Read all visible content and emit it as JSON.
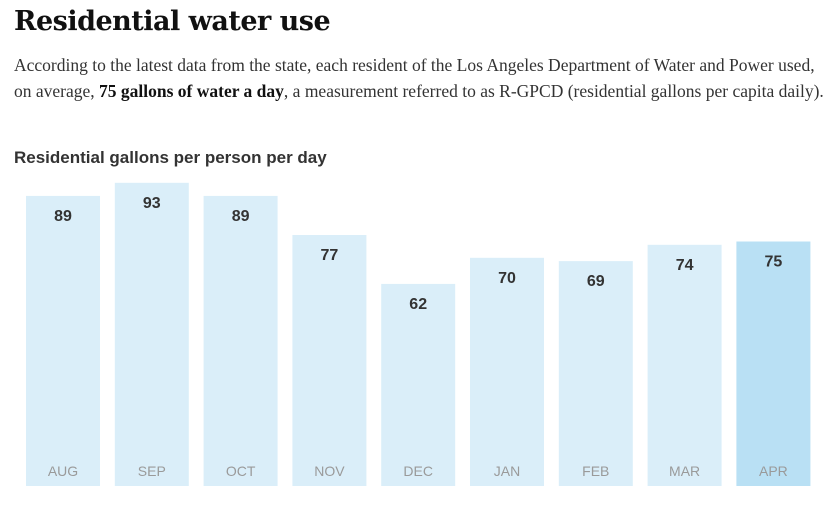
{
  "header": {
    "title": "Residential water use",
    "description_before": "According to the latest data from the state, each resident of the Los Angeles Department of Water and Power used, on average, ",
    "description_bold": "75 gallons of water a day",
    "description_after": ", a measurement referred to as R-GPCD (residential gallons per capita daily)."
  },
  "chart_data": {
    "type": "bar",
    "title": "Residential gallons per person per day",
    "categories": [
      "AUG",
      "SEP",
      "OCT",
      "NOV",
      "DEC",
      "JAN",
      "FEB",
      "MAR",
      "APR"
    ],
    "values": [
      89,
      93,
      89,
      77,
      62,
      70,
      69,
      74,
      75
    ],
    "highlight_category": "APR",
    "bar_color": "#daeef9",
    "highlight_color": "#b9e0f4",
    "value_label_color": "#333333",
    "category_label_color": "#9a9a9a",
    "grid": false,
    "legend": "none"
  }
}
